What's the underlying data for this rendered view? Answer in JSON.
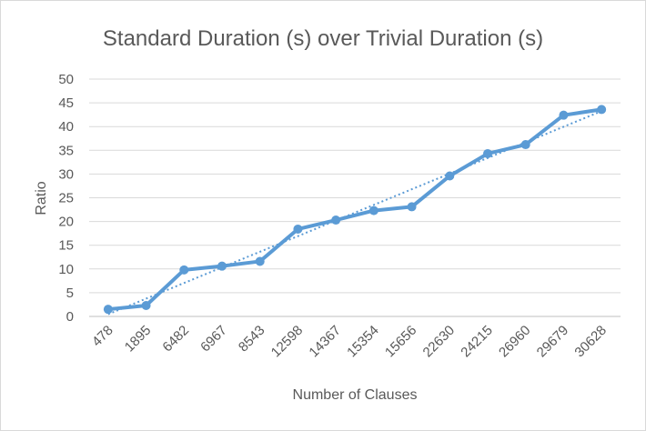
{
  "chart_data": {
    "type": "line",
    "title": "Standard Duration (s) over Trivial Duration (s)",
    "xlabel": "Number of Clauses",
    "ylabel": "Ratio",
    "categories": [
      "478",
      "1895",
      "6482",
      "6967",
      "8543",
      "12598",
      "14367",
      "15354",
      "15656",
      "22630",
      "24215",
      "26960",
      "29679",
      "30628"
    ],
    "series": [
      {
        "values": [
          1.5,
          2.3,
          9.8,
          10.6,
          11.6,
          18.4,
          20.3,
          22.3,
          23.1,
          29.6,
          34.3,
          36.2,
          42.4,
          43.6
        ],
        "color": "#5b9bd5",
        "marker": "circle"
      }
    ],
    "trendline": {
      "type": "linear",
      "style": "dotted",
      "color": "#5b9bd5"
    },
    "ylim": [
      0,
      50
    ],
    "yticks": [
      0,
      5,
      10,
      15,
      20,
      25,
      30,
      35,
      40,
      45,
      50
    ],
    "grid": true,
    "legend": "none"
  }
}
